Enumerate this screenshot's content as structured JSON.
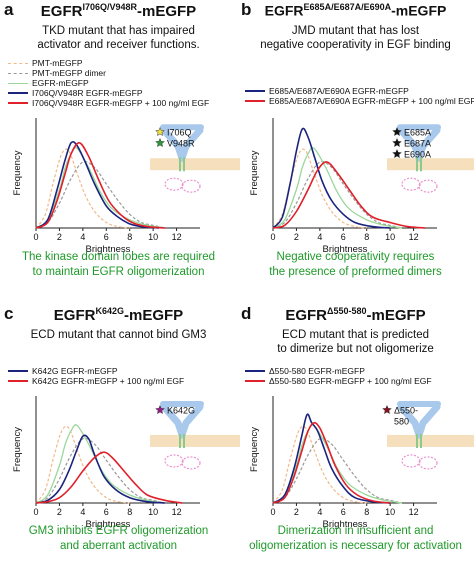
{
  "colors": {
    "pmt": "#f2b98a",
    "pmt_dimer": "#999999",
    "egfr": "#9ad79a",
    "mutant": "#1a237e",
    "mutant_egf": "#e0202a",
    "green_text": "#1f9a2a",
    "receptor": "#a8c8ec",
    "membrane": "#f3d9b0"
  },
  "panels": [
    {
      "letter": "a",
      "title_base": "EGFR",
      "title_sup": "I706Q/V948R",
      "title_suffix": "-mEGFP",
      "desc": [
        "TKD mutant that has impaired",
        "activator and receiver functions."
      ],
      "legend": [
        "PMT-mEGFP",
        "PMT-mEGFP dimer",
        "EGFR-mEGFP",
        "I706Q/V948R EGFR-mEGFP",
        "I706Q/V948R EGFR-mEGFP + 100 ng/ml EGF"
      ],
      "mutations": [
        {
          "label": "I706Q",
          "color": "#f0e040"
        },
        {
          "label": "V948R",
          "color": "#2a9a3a"
        }
      ],
      "conclusion": [
        "The kinase domain lobes are required",
        "to maintain EGFR oligomerization"
      ]
    },
    {
      "letter": "b",
      "title_base": "EGFR",
      "title_sup": "E685A/E687A/E690A",
      "title_suffix": "-mEGFP",
      "desc": [
        "JMD mutant that has lost",
        "negative cooperativity in EGF binding"
      ],
      "legend": [
        "E685A/E687A/E690A EGFR-mEGFP",
        "E685A/E687A/E690A EGFR-mEGFP + 100 ng/ml EGF"
      ],
      "mutations": [
        {
          "label": "E685A",
          "color": "#111111"
        },
        {
          "label": "E687A",
          "color": "#111111"
        },
        {
          "label": "E690A",
          "color": "#111111"
        }
      ],
      "conclusion": [
        "Negative cooperativity requires",
        "the presence of preformed dimers"
      ]
    },
    {
      "letter": "c",
      "title_base": "EGFR",
      "title_sup": "K642G",
      "title_suffix": "-mEGFP",
      "desc": [
        "ECD mutant that cannot bind GM3"
      ],
      "legend": [
        "K642G EGFR-mEGFP",
        "K642G EGFR-mEGFP + 100 ng/ml EGF"
      ],
      "mutations": [
        {
          "label": "K642G",
          "color": "#9a1a8a"
        }
      ],
      "conclusion": [
        "GM3 inhibits EGFR oligomerization",
        "and aberrant activation"
      ]
    },
    {
      "letter": "d",
      "title_base": "EGFR",
      "title_sup": "Δ550-580",
      "title_suffix": "-mEGFP",
      "desc": [
        "ECD mutant that is predicted",
        "to dimerize but not oligomerize"
      ],
      "legend": [
        "Δ550-580 EGFR-mEGFP",
        "Δ550-580 EGFR-mEGFP + 100 ng/ml EGF"
      ],
      "mutations": [
        {
          "label": "Δ550-",
          "color": "#8a1020"
        },
        {
          "label": "580",
          "color": ""
        }
      ],
      "conclusion": [
        "Dimerization in insufficient and",
        "oligomerization is necessary for activation"
      ]
    }
  ],
  "chart_data": [
    {
      "type": "line",
      "panel": "a",
      "xlabel": "Brightness",
      "ylabel": "Frequency",
      "xticks": [
        0,
        2,
        4,
        6,
        8,
        10,
        12
      ],
      "xlim": [
        0,
        14
      ],
      "ylim": [
        0,
        0.4
      ],
      "series": [
        {
          "name": "PMT-mEGFP",
          "style": "dashed",
          "color": "pmt",
          "x": [
            0,
            0.8,
            1.5,
            2.2,
            2.8,
            3.5,
            4.2,
            5,
            6,
            7,
            8
          ],
          "y": [
            0,
            0.05,
            0.17,
            0.27,
            0.28,
            0.2,
            0.12,
            0.06,
            0.02,
            0.005,
            0
          ]
        },
        {
          "name": "PMT-mEGFP dimer",
          "style": "dashed",
          "color": "pmt_dimer",
          "x": [
            0,
            1,
            2,
            3,
            4,
            5,
            6,
            7,
            8,
            9,
            10,
            11
          ],
          "y": [
            0,
            0.02,
            0.09,
            0.18,
            0.24,
            0.22,
            0.16,
            0.1,
            0.05,
            0.02,
            0.01,
            0
          ]
        },
        {
          "name": "EGFR-mEGFP",
          "style": "solid",
          "color": "egfr",
          "x": [
            0,
            1,
            2,
            2.5,
            3,
            3.5,
            4.5,
            5.5,
            6.5,
            8,
            9.5,
            11
          ],
          "y": [
            0,
            0.03,
            0.14,
            0.22,
            0.27,
            0.29,
            0.22,
            0.13,
            0.07,
            0.03,
            0.01,
            0
          ]
        },
        {
          "name": "I706Q/V948R EGFR-mEGFP",
          "style": "solid",
          "color": "mutant",
          "x": [
            0,
            1,
            1.8,
            2.5,
            3,
            3.5,
            4.2,
            5,
            6,
            7,
            8,
            9,
            10.5
          ],
          "y": [
            0,
            0.03,
            0.14,
            0.25,
            0.31,
            0.3,
            0.24,
            0.16,
            0.08,
            0.04,
            0.015,
            0.005,
            0
          ]
        },
        {
          "name": "I706Q/V948R EGFR-mEGFP + 100 ng/ml EGF",
          "style": "solid",
          "color": "mutant_egf",
          "x": [
            0,
            1,
            1.8,
            2.5,
            3,
            3.7,
            4.5,
            5.3,
            6.2,
            7.2,
            8.2,
            9.5,
            11
          ],
          "y": [
            0,
            0.02,
            0.1,
            0.2,
            0.27,
            0.31,
            0.26,
            0.18,
            0.1,
            0.05,
            0.02,
            0.005,
            0
          ]
        }
      ]
    },
    {
      "type": "line",
      "panel": "b",
      "xlabel": "Brightness",
      "ylabel": "Frequency",
      "xticks": [
        0,
        2,
        4,
        6,
        8,
        10,
        12
      ],
      "xlim": [
        0,
        14
      ],
      "ylim": [
        0,
        0.4
      ],
      "series": [
        {
          "name": "PMT-mEGFP",
          "style": "dashed",
          "color": "pmt",
          "x": [
            0,
            0.8,
            1.5,
            2.2,
            2.8,
            3.5,
            4.2,
            5,
            6,
            7,
            8
          ],
          "y": [
            0,
            0.05,
            0.17,
            0.27,
            0.28,
            0.2,
            0.12,
            0.06,
            0.02,
            0.005,
            0
          ]
        },
        {
          "name": "PMT-mEGFP dimer",
          "style": "dashed",
          "color": "pmt_dimer",
          "x": [
            0,
            1,
            2,
            3,
            4,
            5,
            6,
            7,
            8,
            9,
            10,
            11
          ],
          "y": [
            0,
            0.02,
            0.09,
            0.18,
            0.24,
            0.22,
            0.16,
            0.1,
            0.05,
            0.02,
            0.01,
            0
          ]
        },
        {
          "name": "EGFR-mEGFP",
          "style": "solid",
          "color": "egfr",
          "x": [
            0,
            1,
            2,
            2.5,
            3,
            3.5,
            4.5,
            5.5,
            6.5,
            8,
            9.5,
            11
          ],
          "y": [
            0,
            0.03,
            0.14,
            0.22,
            0.27,
            0.29,
            0.22,
            0.13,
            0.07,
            0.03,
            0.01,
            0
          ]
        },
        {
          "name": "E685A/E687A/E690A EGFR-mEGFP",
          "style": "solid",
          "color": "mutant",
          "x": [
            0,
            0.8,
            1.5,
            2,
            2.5,
            3,
            3.6,
            4.2,
            5,
            6,
            7,
            8.5,
            10
          ],
          "y": [
            0,
            0.04,
            0.17,
            0.28,
            0.36,
            0.33,
            0.25,
            0.17,
            0.1,
            0.05,
            0.02,
            0.005,
            0
          ]
        },
        {
          "name": "E685A/E687A/E690A EGFR-mEGFP + 100 ng/ml EGF",
          "style": "solid",
          "color": "mutant_egf",
          "x": [
            0,
            1,
            2,
            3,
            3.8,
            4.6,
            5.5,
            6.5,
            7.5,
            8.5,
            10,
            11.5,
            13
          ],
          "y": [
            0,
            0.01,
            0.06,
            0.14,
            0.21,
            0.24,
            0.2,
            0.14,
            0.08,
            0.04,
            0.02,
            0.005,
            0
          ]
        }
      ]
    },
    {
      "type": "line",
      "panel": "c",
      "xlabel": "Brightness",
      "ylabel": "Frequency",
      "xticks": [
        0,
        2,
        4,
        6,
        8,
        10,
        12
      ],
      "xlim": [
        0,
        14
      ],
      "ylim": [
        0,
        0.4
      ],
      "series": [
        {
          "name": "PMT-mEGFP",
          "style": "dashed",
          "color": "pmt",
          "x": [
            0,
            0.8,
            1.5,
            2.2,
            2.8,
            3.5,
            4.2,
            5,
            6,
            7,
            8
          ],
          "y": [
            0,
            0.05,
            0.17,
            0.27,
            0.28,
            0.2,
            0.12,
            0.06,
            0.02,
            0.005,
            0
          ]
        },
        {
          "name": "PMT-mEGFP dimer",
          "style": "dashed",
          "color": "pmt_dimer",
          "x": [
            0,
            1,
            2,
            3,
            4,
            5,
            6,
            7,
            8,
            9,
            10,
            11
          ],
          "y": [
            0,
            0.02,
            0.09,
            0.18,
            0.24,
            0.22,
            0.16,
            0.1,
            0.05,
            0.02,
            0.01,
            0
          ]
        },
        {
          "name": "EGFR-mEGFP",
          "style": "solid",
          "color": "egfr",
          "x": [
            0,
            1,
            2,
            2.5,
            3,
            3.5,
            4.5,
            5.5,
            6.5,
            8,
            9.5,
            11
          ],
          "y": [
            0,
            0.03,
            0.14,
            0.22,
            0.27,
            0.29,
            0.22,
            0.13,
            0.07,
            0.03,
            0.01,
            0
          ]
        },
        {
          "name": "K642G EGFR-mEGFP",
          "style": "solid",
          "color": "mutant",
          "x": [
            0,
            1,
            2,
            2.8,
            3.5,
            4,
            4.5,
            5,
            5.8,
            6.8,
            8,
            9.5,
            11
          ],
          "y": [
            0,
            0.01,
            0.05,
            0.12,
            0.2,
            0.25,
            0.24,
            0.18,
            0.1,
            0.05,
            0.02,
            0.005,
            0
          ]
        },
        {
          "name": "K642G EGFR-mEGFP + 100 ng/ml EGF",
          "style": "solid",
          "color": "mutant_egf",
          "x": [
            0,
            1,
            2,
            3,
            4,
            5,
            5.8,
            6.5,
            7.5,
            8.5,
            9.5,
            11,
            12.5
          ],
          "y": [
            0,
            0.005,
            0.02,
            0.06,
            0.12,
            0.17,
            0.19,
            0.17,
            0.12,
            0.07,
            0.03,
            0.01,
            0
          ]
        }
      ]
    },
    {
      "type": "line",
      "panel": "d",
      "xlabel": "Brightness",
      "ylabel": "Frequency",
      "xticks": [
        0,
        2,
        4,
        6,
        8,
        10,
        12
      ],
      "xlim": [
        0,
        14
      ],
      "ylim": [
        0,
        0.4
      ],
      "series": [
        {
          "name": "PMT-mEGFP",
          "style": "dashed",
          "color": "pmt",
          "x": [
            0,
            0.8,
            1.5,
            2.2,
            2.8,
            3.5,
            4.2,
            5,
            6,
            7,
            8
          ],
          "y": [
            0,
            0.05,
            0.17,
            0.27,
            0.28,
            0.2,
            0.12,
            0.06,
            0.02,
            0.005,
            0
          ]
        },
        {
          "name": "PMT-mEGFP dimer",
          "style": "dashed",
          "color": "pmt_dimer",
          "x": [
            0,
            1,
            2,
            3,
            4,
            5,
            6,
            7,
            8,
            9,
            10,
            11
          ],
          "y": [
            0,
            0.02,
            0.09,
            0.18,
            0.24,
            0.22,
            0.16,
            0.1,
            0.05,
            0.02,
            0.01,
            0
          ]
        },
        {
          "name": "EGFR-mEGFP",
          "style": "solid",
          "color": "egfr",
          "x": [
            0,
            1,
            2,
            2.5,
            3,
            3.5,
            4.5,
            5.5,
            6.5,
            8,
            9.5,
            11
          ],
          "y": [
            0,
            0.03,
            0.14,
            0.22,
            0.27,
            0.29,
            0.22,
            0.13,
            0.07,
            0.03,
            0.01,
            0
          ]
        },
        {
          "name": "Δ550-580 EGFR-mEGFP",
          "style": "solid",
          "color": "mutant",
          "x": [
            0,
            1,
            1.8,
            2.4,
            2.9,
            3.3,
            3.8,
            4.4,
            5,
            6,
            7,
            8.5,
            10
          ],
          "y": [
            0,
            0.03,
            0.13,
            0.24,
            0.33,
            0.3,
            0.27,
            0.2,
            0.13,
            0.06,
            0.02,
            0.005,
            0
          ]
        },
        {
          "name": "Δ550-580 EGFR-mEGFP + 100 ng/ml EGF",
          "style": "solid",
          "color": "mutant_egf",
          "x": [
            0,
            1,
            1.8,
            2.5,
            3,
            3.5,
            4,
            4.6,
            5.3,
            6.2,
            7.2,
            8.5,
            10
          ],
          "y": [
            0,
            0.02,
            0.1,
            0.2,
            0.27,
            0.3,
            0.28,
            0.22,
            0.14,
            0.07,
            0.03,
            0.008,
            0
          ]
        }
      ]
    }
  ]
}
